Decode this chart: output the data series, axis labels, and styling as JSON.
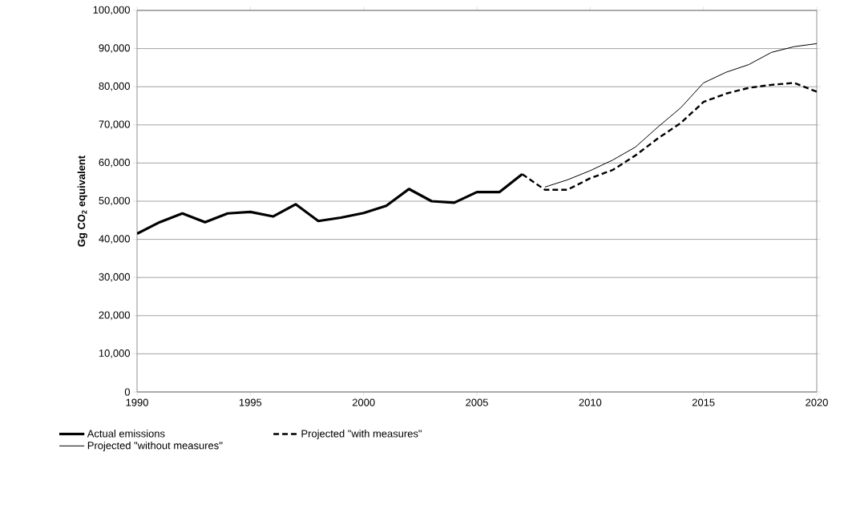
{
  "chart_data": {
    "type": "line",
    "ylabel": "Gg CO$_{2}$ equivalent",
    "xlim": [
      1990,
      2020
    ],
    "xticks": [
      1990,
      1995,
      2000,
      2005,
      2010,
      2015,
      2020
    ],
    "ylim": [
      0,
      100000
    ],
    "yticks": [
      {
        "value": 0,
        "label": "0"
      },
      {
        "value": 10000,
        "label": "10,000"
      },
      {
        "value": 20000,
        "label": "20,000"
      },
      {
        "value": 30000,
        "label": "30,000"
      },
      {
        "value": 40000,
        "label": "40,000"
      },
      {
        "value": 50000,
        "label": "50,000"
      },
      {
        "value": 60000,
        "label": "60,000"
      },
      {
        "value": 70000,
        "label": "70,000"
      },
      {
        "value": 80000,
        "label": "80,000"
      },
      {
        "value": 90000,
        "label": "90,000"
      },
      {
        "value": 100000,
        "label": "100,000"
      }
    ],
    "grid": "y",
    "legend": "bottom",
    "marker": "none",
    "series": [
      {
        "name": "Actual emissions",
        "color": "#000000",
        "line_style": "solid",
        "x": [
          1990,
          1991,
          1992,
          1993,
          1994,
          1995,
          1996,
          1997,
          1998,
          1999,
          2000,
          2001,
          2002,
          2003,
          2004,
          2005,
          2006,
          2007
        ],
        "values": [
          41500,
          44500,
          46800,
          44500,
          46800,
          47200,
          46000,
          49200,
          44800,
          45700,
          46900,
          48800,
          53200,
          50000,
          49600,
          52400,
          52400,
          57100
        ]
      },
      {
        "name": "Projected \"with measures\"",
        "color": "#000000",
        "line_style": "dashed",
        "x": [
          2007,
          2008,
          2009,
          2010,
          2011,
          2012,
          2013,
          2014,
          2015,
          2016,
          2017,
          2018,
          2019,
          2020
        ],
        "values": [
          57100,
          53000,
          53000,
          56000,
          58200,
          62000,
          66500,
          70500,
          76000,
          78200,
          79700,
          80500,
          81000,
          78700
        ]
      },
      {
        "name": "Projected \"without measures''",
        "color": "#000000",
        "line_style": "solid",
        "x": [
          2008,
          2009,
          2010,
          2011,
          2012,
          2013,
          2014,
          2015,
          2016,
          2017,
          2018,
          2019,
          2020
        ],
        "values": [
          53700,
          55600,
          58000,
          60800,
          64200,
          69500,
          74500,
          81000,
          83800,
          85800,
          89000,
          90500,
          91300
        ]
      }
    ]
  }
}
